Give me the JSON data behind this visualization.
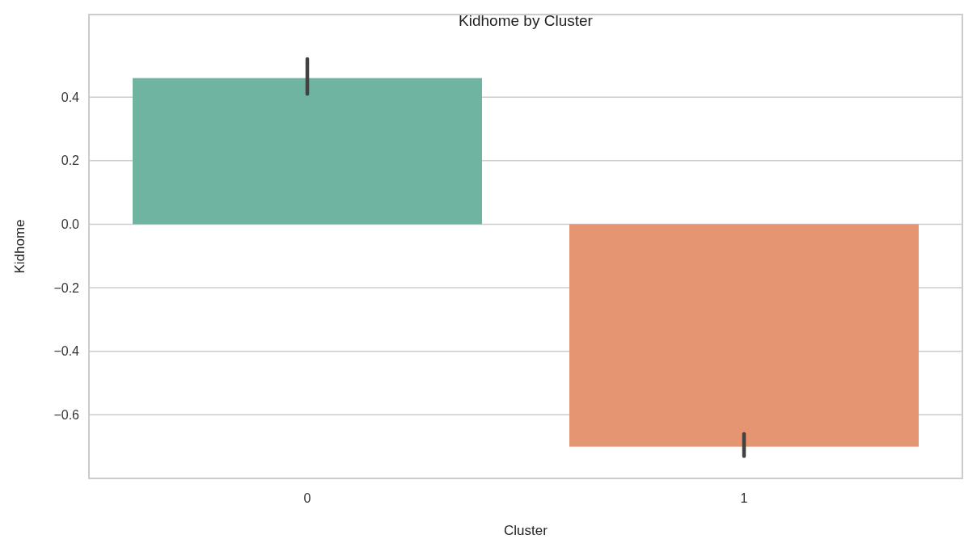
{
  "chart_data": {
    "type": "bar",
    "title": "Kidhome by Cluster",
    "xlabel": "Cluster",
    "ylabel": "Kidhome",
    "categories": [
      "0",
      "1"
    ],
    "values": [
      0.46,
      -0.7
    ],
    "colors": [
      "#6eb4a1",
      "#e59572"
    ],
    "errors": [
      [
        0.41,
        0.52
      ],
      [
        -0.73,
        -0.66
      ]
    ],
    "ylim": [
      -0.8,
      0.66
    ],
    "yticks": [
      {
        "value": -0.6,
        "label": "−0.6"
      },
      {
        "value": -0.4,
        "label": "−0.4"
      },
      {
        "value": -0.2,
        "label": "−0.2"
      },
      {
        "value": 0,
        "label": "0.0"
      },
      {
        "value": 0.2,
        "label": "0.2"
      },
      {
        "value": 0.4,
        "label": "0.4"
      }
    ],
    "grid": "y"
  }
}
